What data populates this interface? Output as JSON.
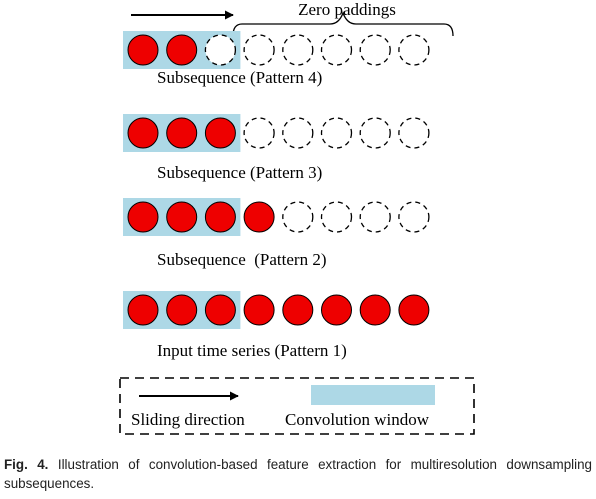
{
  "figure": {
    "zero_paddings_label": "Zero paddings",
    "rows": [
      {
        "label": "Subsequence (Pattern 4)",
        "filled": 2,
        "total": 8
      },
      {
        "label": "Subsequence (Pattern 3)",
        "filled": 3,
        "total": 8
      },
      {
        "label": "Subsequence  (Pattern 2)",
        "filled": 4,
        "total": 8
      },
      {
        "label": "Input time series (Pattern 1)",
        "filled": 8,
        "total": 8
      }
    ],
    "window_size": 3,
    "legend": {
      "sliding_direction": "Sliding direction",
      "convolution_window": "Convolution window"
    },
    "colors": {
      "point": "#ee0000",
      "window": "#add8e6",
      "stroke": "#000000"
    }
  },
  "caption": {
    "label": "Fig. 4.",
    "text": "Illustration of convolution-based feature extraction for multiresolution downsampling subsequences."
  }
}
